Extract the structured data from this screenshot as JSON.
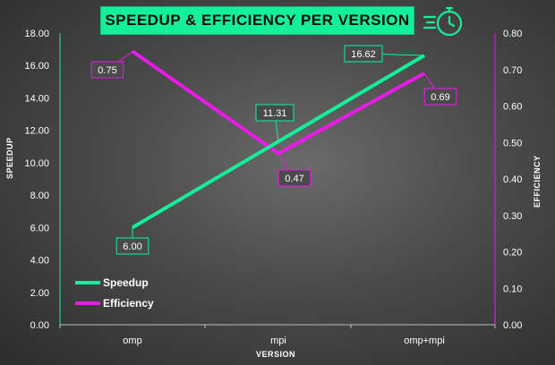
{
  "title": "SPEEDUP & EFFICIENCY PER VERSION",
  "icons": {
    "stopwatch": "stopwatch-icon"
  },
  "colors": {
    "speedup": "#14ef9a",
    "efficiency": "#e81be8",
    "title_bg": "#14ef9a"
  },
  "legend": {
    "speedup": "Speedup",
    "efficiency": "Efficiency",
    "placement": "bottom-left"
  },
  "chart_data": {
    "type": "line",
    "title": "SPEEDUP & EFFICIENCY PER VERSION",
    "xlabel": "VERSION",
    "ylabel": "SPEEDUP",
    "y2label": "EFFICIENCY",
    "categories": [
      "omp",
      "mpi",
      "omp+mpi"
    ],
    "ylim": [
      0,
      18
    ],
    "y2lim": [
      0,
      0.8
    ],
    "yticks": [
      "0.00",
      "2.00",
      "4.00",
      "6.00",
      "8.00",
      "10.00",
      "12.00",
      "14.00",
      "16.00",
      "18.00"
    ],
    "y2ticks": [
      "0.00",
      "0.10",
      "0.20",
      "0.30",
      "0.40",
      "0.50",
      "0.60",
      "0.70",
      "0.80"
    ],
    "grid": false,
    "series": [
      {
        "name": "Speedup",
        "axis": "left",
        "values": [
          6.0,
          11.31,
          16.62
        ],
        "labels": [
          "6.00",
          "11.31",
          "16.62"
        ]
      },
      {
        "name": "Efficiency",
        "axis": "right",
        "values": [
          0.75,
          0.47,
          0.69
        ],
        "labels": [
          "0.75",
          "0.47",
          "0.69"
        ]
      }
    ]
  }
}
